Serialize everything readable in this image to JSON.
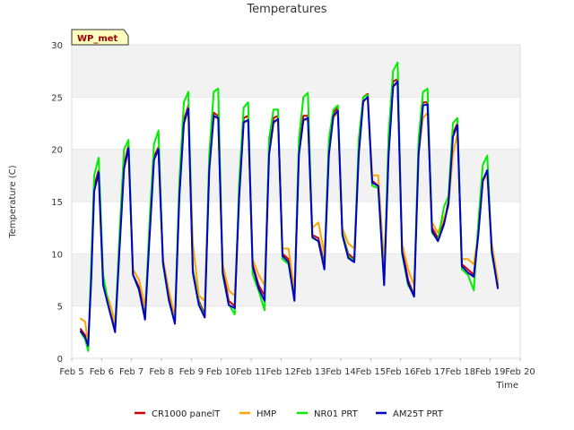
{
  "chart_data": {
    "type": "line",
    "title": "Temperatures",
    "xlabel": "Time",
    "ylabel": "Temperature (C)",
    "badge": "WP_met",
    "xlim": [
      0,
      15
    ],
    "ylim": [
      0,
      30
    ],
    "xticks": [
      0,
      1,
      2,
      3,
      4,
      5,
      6,
      7,
      8,
      9,
      10,
      11,
      12,
      13,
      14,
      15
    ],
    "xtick_labels": [
      "Feb 5",
      "Feb 6",
      "Feb 7",
      "Feb 8",
      "Feb 9",
      "Feb 10",
      "Feb 11",
      "Feb 12",
      "Feb 13",
      "Feb 14",
      "Feb 15",
      "Feb 16",
      "Feb 17",
      "Feb 18",
      "Feb 19",
      "Feb 20"
    ],
    "yticks": [
      0,
      5,
      10,
      15,
      20,
      25,
      30
    ],
    "ytick_labels": [
      "0",
      "5",
      "10",
      "15",
      "20",
      "25",
      "30"
    ],
    "grid": "horizontal bands",
    "legend_position": "bottom",
    "x": [
      0.3,
      0.45,
      0.55,
      0.65,
      0.75,
      0.9,
      1.05,
      1.25,
      1.45,
      1.6,
      1.75,
      1.9,
      2.05,
      2.25,
      2.45,
      2.6,
      2.75,
      2.9,
      3.05,
      3.25,
      3.45,
      3.6,
      3.75,
      3.9,
      4.05,
      4.25,
      4.45,
      4.6,
      4.75,
      4.9,
      5.05,
      5.25,
      5.45,
      5.6,
      5.75,
      5.9,
      6.05,
      6.25,
      6.45,
      6.6,
      6.75,
      6.9,
      7.05,
      7.25,
      7.45,
      7.6,
      7.75,
      7.9,
      8.05,
      8.25,
      8.45,
      8.6,
      8.75,
      8.9,
      9.05,
      9.25,
      9.45,
      9.6,
      9.75,
      9.9,
      10.05,
      10.25,
      10.45,
      10.6,
      10.75,
      10.9,
      11.05,
      11.25,
      11.45,
      11.6,
      11.75,
      11.9,
      12.05,
      12.25,
      12.45,
      12.6,
      12.75,
      12.9,
      13.05,
      13.25,
      13.45,
      13.6,
      13.75,
      13.9,
      14.05,
      14.25
    ],
    "series": [
      {
        "name": "CR1000 panelT",
        "color": "#cc0000",
        "values": [
          2.8,
          2.2,
          1.4,
          8.0,
          16.5,
          18.0,
          7.5,
          4.8,
          2.8,
          11.0,
          18.5,
          20.4,
          8.0,
          6.8,
          4.0,
          12.0,
          19.3,
          20.2,
          9.5,
          5.8,
          3.6,
          16.0,
          22.8,
          24.2,
          8.5,
          5.5,
          4.2,
          18.5,
          23.5,
          23.2,
          8.5,
          5.5,
          5.0,
          16.0,
          23.0,
          23.2,
          9.0,
          7.0,
          6.0,
          20.0,
          23.0,
          23.2,
          10.0,
          9.5,
          5.8,
          20.0,
          23.2,
          23.2,
          11.8,
          11.5,
          9.0,
          20.0,
          23.5,
          24.0,
          12.0,
          10.0,
          9.5,
          20.0,
          25.0,
          25.3,
          17.0,
          16.5,
          8.0,
          20.0,
          26.5,
          26.7,
          10.5,
          7.5,
          6.0,
          20.0,
          24.5,
          24.5,
          12.5,
          11.5,
          13.0,
          15.0,
          21.5,
          22.5,
          9.0,
          8.5,
          8.0,
          12.0,
          17.0,
          18.0,
          10.5,
          7.0
        ]
      },
      {
        "name": "HMP",
        "color": "#ffa500",
        "values": [
          3.8,
          3.5,
          1.2,
          7.8,
          16.0,
          17.5,
          7.0,
          5.5,
          3.5,
          10.5,
          18.0,
          20.0,
          8.5,
          7.5,
          5.0,
          11.5,
          19.0,
          20.0,
          9.5,
          6.5,
          4.0,
          15.5,
          22.3,
          24.0,
          11.0,
          6.0,
          5.5,
          18.0,
          23.0,
          23.0,
          9.0,
          6.5,
          6.0,
          15.5,
          22.5,
          22.8,
          9.5,
          8.0,
          7.0,
          19.5,
          22.5,
          22.8,
          10.5,
          10.5,
          6.5,
          19.5,
          22.8,
          22.8,
          12.5,
          13.0,
          10.0,
          19.5,
          23.0,
          23.5,
          12.5,
          11.0,
          10.5,
          19.5,
          24.5,
          25.0,
          17.5,
          17.5,
          9.0,
          19.5,
          26.0,
          26.3,
          11.0,
          8.5,
          7.0,
          19.5,
          23.0,
          23.5,
          13.0,
          12.0,
          13.5,
          14.5,
          19.5,
          21.5,
          9.5,
          9.5,
          9.0,
          12.0,
          17.0,
          17.5,
          11.0,
          7.5
        ]
      },
      {
        "name": "NR01 PRT",
        "color": "#00ee00",
        "values": [
          2.5,
          1.8,
          0.7,
          9.0,
          17.5,
          19.2,
          8.0,
          4.8,
          2.6,
          12.0,
          20.0,
          20.9,
          8.0,
          6.5,
          3.8,
          13.0,
          20.5,
          21.8,
          9.0,
          5.5,
          3.4,
          17.0,
          24.5,
          25.5,
          8.5,
          5.3,
          4.0,
          19.5,
          25.5,
          25.8,
          8.0,
          5.2,
          4.2,
          17.0,
          24.0,
          24.5,
          8.0,
          6.5,
          4.6,
          21.0,
          23.8,
          23.8,
          9.5,
          9.0,
          5.6,
          21.0,
          25.0,
          25.4,
          11.5,
          11.2,
          8.7,
          21.0,
          23.8,
          24.2,
          12.0,
          9.8,
          9.3,
          21.0,
          25.0,
          25.2,
          16.5,
          16.3,
          7.0,
          21.5,
          27.5,
          28.3,
          10.0,
          7.0,
          6.0,
          21.0,
          25.5,
          25.8,
          12.0,
          11.3,
          14.5,
          15.5,
          22.5,
          23.0,
          8.5,
          8.0,
          6.5,
          13.0,
          18.5,
          19.4,
          10.0,
          6.8
        ]
      },
      {
        "name": "AM25T PRT",
        "color": "#0000cc",
        "values": [
          2.6,
          2.0,
          1.2,
          7.5,
          16.0,
          17.8,
          7.0,
          4.7,
          2.5,
          10.5,
          18.2,
          20.1,
          8.0,
          6.6,
          3.7,
          11.5,
          19.0,
          20.0,
          9.2,
          5.6,
          3.3,
          15.5,
          22.5,
          23.9,
          8.2,
          5.1,
          3.9,
          18.0,
          23.2,
          23.0,
          8.2,
          5.1,
          4.8,
          15.5,
          22.6,
          22.8,
          8.8,
          6.7,
          5.5,
          19.5,
          22.6,
          22.9,
          9.8,
          9.2,
          5.5,
          19.5,
          22.8,
          23.0,
          11.6,
          11.2,
          8.5,
          19.5,
          23.2,
          23.7,
          11.8,
          9.6,
          9.2,
          19.5,
          24.6,
          25.0,
          16.8,
          16.5,
          7.0,
          19.5,
          26.0,
          26.5,
          10.2,
          7.2,
          5.9,
          19.5,
          24.2,
          24.3,
          12.2,
          11.2,
          12.8,
          14.8,
          21.2,
          22.3,
          8.8,
          8.2,
          7.8,
          11.8,
          17.0,
          18.0,
          10.3,
          6.7
        ]
      }
    ]
  }
}
